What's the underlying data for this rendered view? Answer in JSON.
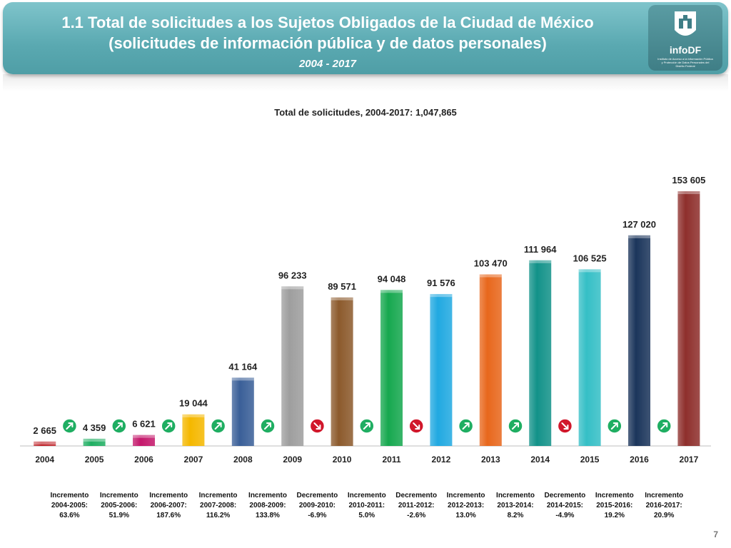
{
  "header": {
    "line1": "1.1 Total de solicitudes a los Sujetos Obligados de la Ciudad de México",
    "line2": "(solicitudes de información pública y de datos personales)",
    "period": "2004 - 2017",
    "logo_text": "infoDF",
    "logo_subtext": "Instituto de Acceso a la Información Pública y Protección de Datos Personales del Distrito Federal"
  },
  "chart_data": {
    "type": "bar",
    "title": "Total de solicitudes, 2004-2017: 1,047,865",
    "categories": [
      "2004",
      "2005",
      "2006",
      "2007",
      "2008",
      "2009",
      "2010",
      "2011",
      "2012",
      "2013",
      "2014",
      "2015",
      "2016",
      "2017"
    ],
    "values": [
      2665,
      4359,
      6621,
      19044,
      41164,
      96233,
      89571,
      94048,
      91576,
      103470,
      111964,
      106525,
      127020,
      153605
    ],
    "value_labels": [
      "2 665",
      "4 359",
      "6 621",
      "19 044",
      "41 164",
      "96 233",
      "89 571",
      "94 048",
      "91 576",
      "103 470",
      "111 964",
      "106 525",
      "127 020",
      "153 605"
    ],
    "colors": [
      "#c0272d",
      "#1fae62",
      "#c4186b",
      "#f5b800",
      "#3a5f98",
      "#9e9e9e",
      "#8c5a2c",
      "#16a84f",
      "#21a9e1",
      "#e8671c",
      "#129289",
      "#35bfc6",
      "#1b355b",
      "#8e2f2c"
    ],
    "ylim": [
      0,
      160000
    ],
    "changes": [
      {
        "type": "Incremento",
        "period": "2004-2005:",
        "pct": "63.6%",
        "direction": "up"
      },
      {
        "type": "Incremento",
        "period": "2005-2006:",
        "pct": "51.9%",
        "direction": "up"
      },
      {
        "type": "Incremento",
        "period": "2006-2007:",
        "pct": "187.6%",
        "direction": "up"
      },
      {
        "type": "Incremento",
        "period": "2007-2008:",
        "pct": "116.2%",
        "direction": "up"
      },
      {
        "type": "Incremento",
        "period": "2008-2009:",
        "pct": "133.8%",
        "direction": "up"
      },
      {
        "type": "Decremento",
        "period": "2009-2010:",
        "pct": "-6.9%",
        "direction": "down"
      },
      {
        "type": "Incremento",
        "period": "2010-2011:",
        "pct": "5.0%",
        "direction": "up"
      },
      {
        "type": "Decremento",
        "period": "2011-2012:",
        "pct": "-2.6%",
        "direction": "down"
      },
      {
        "type": "Incremento",
        "period": "2012-2013:",
        "pct": "13.0%",
        "direction": "up"
      },
      {
        "type": "Incremento",
        "period": "2013-2014:",
        "pct": "8.2%",
        "direction": "up"
      },
      {
        "type": "Decremento",
        "period": "2014-2015:",
        "pct": "-4.9%",
        "direction": "down"
      },
      {
        "type": "Incremento",
        "period": "2015-2016:",
        "pct": "19.2%",
        "direction": "up"
      },
      {
        "type": "Incremento",
        "period": "2016-2017:",
        "pct": "20.9%",
        "direction": "up"
      }
    ],
    "arrow_colors": {
      "up": "#1fae62",
      "down": "#d1172b"
    }
  },
  "page_number": "7"
}
